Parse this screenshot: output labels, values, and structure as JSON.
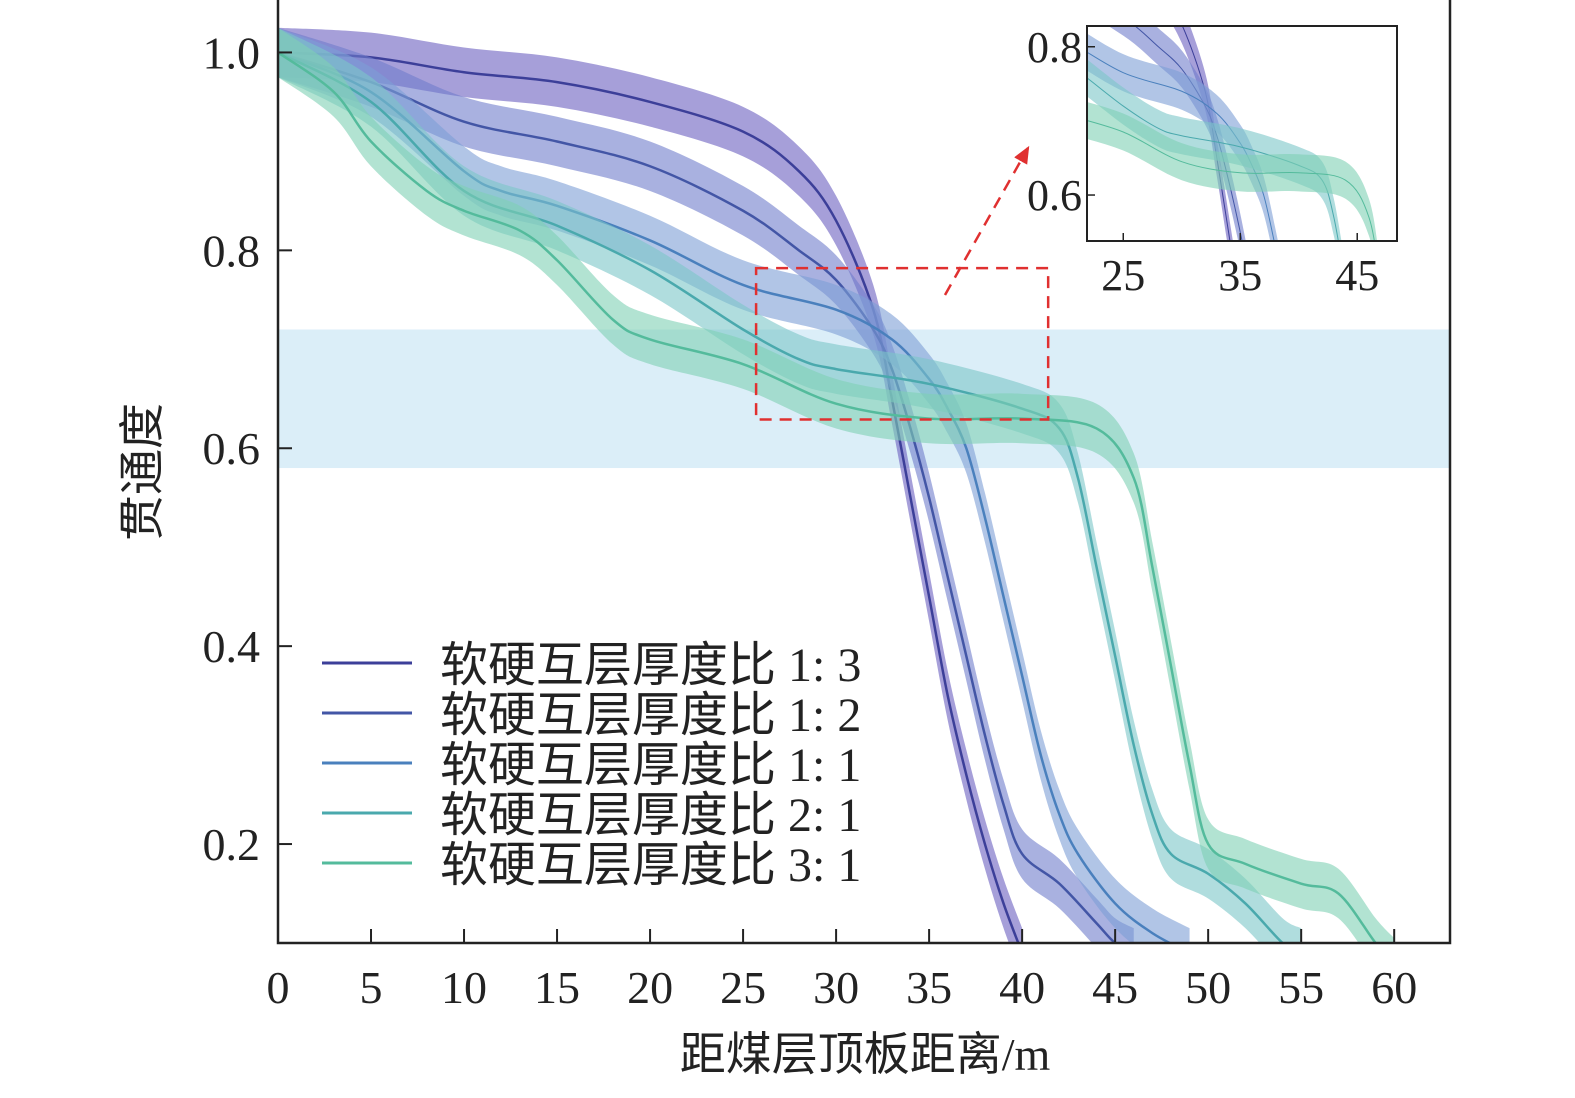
{
  "chart_data": {
    "type": "line",
    "xlabel": "距煤层顶板距离/m",
    "ylabel": "贯通度",
    "xlim": [
      0,
      63
    ],
    "ylim": [
      0.1,
      1.053
    ],
    "xticks": [
      "0",
      "5",
      "10",
      "15",
      "20",
      "25",
      "30",
      "35",
      "40",
      "45",
      "50",
      "55",
      "60"
    ],
    "yticks": [
      "0.2",
      "0.4",
      "0.6",
      "0.8",
      "1.0"
    ],
    "legend_placement": "lower-left",
    "highlight_band": {
      "y_range": [
        0.58,
        0.72
      ],
      "color": "#dbeef8"
    },
    "zoom_box": {
      "x_range": [
        25.7,
        41.4
      ],
      "y_range": [
        0.629,
        0.782
      ],
      "color": "#e03030"
    },
    "inset": {
      "xlim": [
        21.9,
        48.4
      ],
      "ylim": [
        0.538,
        0.828
      ],
      "xticks": [
        "25",
        "35",
        "45"
      ],
      "yticks": [
        "0.6",
        "0.8"
      ]
    },
    "band_half_width": 0.025,
    "series": [
      {
        "name": "软硬互层厚度比 1: 3",
        "color": "#3c3f99",
        "band_color": "#6a5fc0",
        "x": [
          0,
          5,
          10,
          15,
          20,
          25,
          28,
          30,
          32,
          33,
          34,
          35,
          36,
          37,
          38,
          39,
          40
        ],
        "y": [
          1.0,
          0.995,
          0.98,
          0.97,
          0.95,
          0.92,
          0.88,
          0.83,
          0.74,
          0.65,
          0.55,
          0.45,
          0.35,
          0.27,
          0.2,
          0.14,
          0.09
        ]
      },
      {
        "name": "软硬互层厚度比 1: 2",
        "color": "#4356a6",
        "band_color": "#6f7dcc",
        "x": [
          0,
          5,
          10,
          15,
          20,
          25,
          28,
          30,
          32,
          33,
          34,
          35,
          36,
          37,
          38,
          39,
          40,
          42,
          44,
          45,
          46
        ],
        "y": [
          1.0,
          0.97,
          0.93,
          0.91,
          0.885,
          0.84,
          0.8,
          0.77,
          0.72,
          0.68,
          0.62,
          0.55,
          0.47,
          0.39,
          0.31,
          0.24,
          0.19,
          0.16,
          0.12,
          0.1,
          0.09
        ]
      },
      {
        "name": "软硬互层厚度比 1: 1",
        "color": "#4a80bd",
        "band_color": "#7d9fd6",
        "x": [
          0,
          5,
          10,
          12,
          15,
          20,
          25,
          30,
          33,
          35,
          36,
          37,
          38,
          39,
          40,
          41,
          42,
          43,
          45,
          47,
          49
        ],
        "y": [
          1.0,
          0.96,
          0.88,
          0.86,
          0.845,
          0.81,
          0.765,
          0.74,
          0.71,
          0.67,
          0.64,
          0.6,
          0.53,
          0.45,
          0.37,
          0.29,
          0.23,
          0.19,
          0.14,
          0.11,
          0.09
        ]
      },
      {
        "name": "软硬互层厚度比 2: 1",
        "color": "#4aa9ad",
        "band_color": "#7cc6c8",
        "x": [
          0,
          5,
          10,
          15,
          20,
          25,
          28,
          30,
          35,
          40,
          42,
          43,
          44,
          45,
          46,
          47,
          48,
          50,
          52,
          54,
          55
        ],
        "y": [
          1.0,
          0.95,
          0.86,
          0.825,
          0.78,
          0.72,
          0.69,
          0.68,
          0.665,
          0.64,
          0.62,
          0.57,
          0.48,
          0.39,
          0.3,
          0.23,
          0.19,
          0.17,
          0.14,
          0.1,
          0.09
        ]
      },
      {
        "name": "软硬互层厚度比 3: 1",
        "color": "#54bb9c",
        "band_color": "#7fd0b4",
        "x": [
          0,
          3,
          5,
          8,
          10,
          13,
          15,
          18,
          20,
          25,
          30,
          35,
          40,
          44,
          46,
          47,
          48,
          49,
          50,
          52,
          55,
          57,
          59,
          60
        ],
        "y": [
          1.0,
          0.96,
          0.91,
          0.86,
          0.84,
          0.82,
          0.79,
          0.73,
          0.71,
          0.685,
          0.645,
          0.63,
          0.63,
          0.62,
          0.57,
          0.48,
          0.38,
          0.28,
          0.2,
          0.18,
          0.16,
          0.15,
          0.1,
          0.08
        ]
      }
    ]
  }
}
